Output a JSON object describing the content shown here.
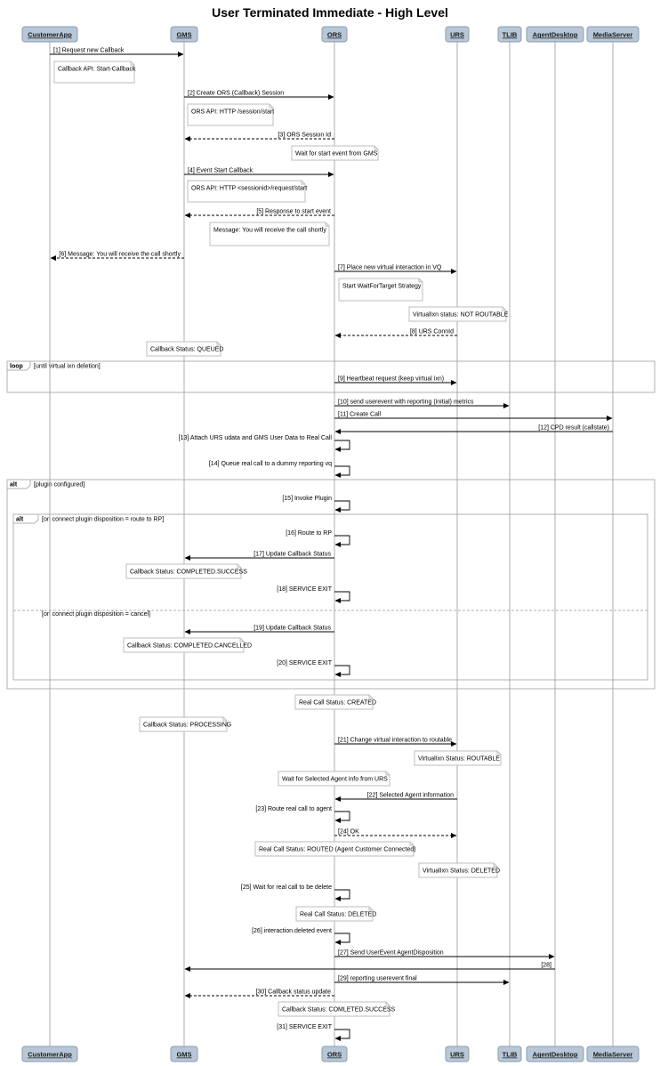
{
  "title": "User Terminated Immediate - High Level",
  "participants": [
    "CustomerApp",
    "GMS",
    "ORS",
    "URS",
    "TLIB",
    "AgentDesktop",
    "MediaServer"
  ],
  "messages": [
    {
      "from": "CustomerApp",
      "to": "GMS",
      "label": "[1] Request new Callback",
      "dashed": false
    },
    {
      "from": "GMS",
      "to": "ORS",
      "label": "[2] Create ORS (Callback) Session",
      "dashed": false
    },
    {
      "from": "ORS",
      "to": "GMS",
      "label": "[3] ORS Session Id",
      "dashed": true
    },
    {
      "from": "GMS",
      "to": "ORS",
      "label": "[4] Event Start Callback",
      "dashed": false
    },
    {
      "from": "ORS",
      "to": "GMS",
      "label": "[5] Response to start event",
      "dashed": true
    },
    {
      "from": "GMS",
      "to": "CustomerApp",
      "label": "[6] Message: You will receive the call shortly",
      "dashed": true
    },
    {
      "from": "ORS",
      "to": "URS",
      "label": "[7] Place new virtual interaction in VQ",
      "dashed": false
    },
    {
      "from": "URS",
      "to": "ORS",
      "label": "[8] URS ConnId",
      "dashed": true
    },
    {
      "from": "ORS",
      "to": "URS",
      "label": "[9] Heartbeat request (keep virtual ixn)",
      "dashed": false
    },
    {
      "from": "ORS",
      "to": "TLIB",
      "label": "[10] send userevent with reporting (initial) metrics",
      "dashed": false
    },
    {
      "from": "ORS",
      "to": "MediaServer",
      "label": "[11] Create Call",
      "dashed": false
    },
    {
      "from": "MediaServer",
      "to": "ORS",
      "label": "[12] CPD result (callstate)",
      "dashed": false
    },
    {
      "from": "ORS",
      "to": "ORS",
      "label": "[13] Attach URS udata and GMS User Data to Real Call",
      "dashed": false
    },
    {
      "from": "ORS",
      "to": "ORS",
      "label": "[14] Queue real call to a dummy reporting vq",
      "dashed": false
    },
    {
      "from": "ORS",
      "to": "ORS",
      "label": "[15] Invoke Plugin",
      "dashed": false
    },
    {
      "from": "ORS",
      "to": "ORS",
      "label": "[16] Route to RP",
      "dashed": false
    },
    {
      "from": "ORS",
      "to": "GMS",
      "label": "[17] Update Callback Status",
      "dashed": false
    },
    {
      "from": "ORS",
      "to": "ORS",
      "label": "[18] SERVICE EXIT",
      "dashed": false
    },
    {
      "from": "ORS",
      "to": "GMS",
      "label": "[19] Update Callback Status",
      "dashed": false
    },
    {
      "from": "ORS",
      "to": "ORS",
      "label": "[20] SERVICE EXIT",
      "dashed": false
    },
    {
      "from": "ORS",
      "to": "URS",
      "label": "[21] Change virtual interaction to routable",
      "dashed": false
    },
    {
      "from": "URS",
      "to": "ORS",
      "label": "[22] Selected Agent information",
      "dashed": false
    },
    {
      "from": "ORS",
      "to": "ORS",
      "label": "[23] Route real call to agent",
      "dashed": false
    },
    {
      "from": "ORS",
      "to": "URS",
      "label": "[24] OK",
      "dashed": true
    },
    {
      "from": "ORS",
      "to": "ORS",
      "label": "[25] Wait for real call to be delete",
      "dashed": false
    },
    {
      "from": "ORS",
      "to": "ORS",
      "label": "[26] interaction.deleted event",
      "dashed": false
    },
    {
      "from": "ORS",
      "to": "AgentDesktop",
      "label": "[27] Send UserEvent AgentDisposition",
      "dashed": false
    },
    {
      "from": "AgentDesktop",
      "to": "GMS",
      "label": "[28]",
      "dashed": false
    },
    {
      "from": "ORS",
      "to": "TLIB",
      "label": "[29] reporting userevent final",
      "dashed": false
    },
    {
      "from": "ORS",
      "to": "GMS",
      "label": "[30] Callback status update",
      "dashed": true
    },
    {
      "from": "ORS",
      "to": "ORS",
      "label": "[31] SERVICE EXIT",
      "dashed": false
    }
  ],
  "notes": [
    {
      "over": "CustomerApp",
      "text": "Callback API: Start-Callback"
    },
    {
      "over": "GMS",
      "text": "ORS API: HTTP /session/start"
    },
    {
      "over": "ORS",
      "text": "Wait for start event from GMS"
    },
    {
      "over": "GMS",
      "text": "ORS API: HTTP <sessionid>/request/start"
    },
    {
      "over": "ORS",
      "text": "Message: You will receive the call shortly"
    },
    {
      "over": "ORS",
      "text": "Start WaitForTarget Strategy"
    },
    {
      "over": "URS",
      "text": "VirtualIxn status: NOT ROUTABLE"
    },
    {
      "over": "GMS",
      "text": "Callback Status: QUEUED"
    },
    {
      "over": "GMS",
      "text": "Callback Status: COMPLETED.SUCCESS"
    },
    {
      "over": "GMS",
      "text": "Callback Status: COMPLETED.CANCELLED"
    },
    {
      "over": "ORS",
      "text": "Real Call Status: CREATED"
    },
    {
      "over": "GMS",
      "text": "Callback Status: PROCESSING"
    },
    {
      "over": "URS",
      "text": "VirtualIxn Status: ROUTABLE"
    },
    {
      "over": "ORS",
      "text": "Wait for Selected Agent info from URS"
    },
    {
      "over": "ORS",
      "text": "Real Call Status: ROUTED (Agent Customer Connected)"
    },
    {
      "over": "URS",
      "text": "VirtualIxn Status: DELETED"
    },
    {
      "over": "ORS",
      "text": "Real Call Status: DELETED"
    },
    {
      "over": "ORS",
      "text": "Callback Status: COMLETED.SUCCESS"
    }
  ],
  "frames": [
    {
      "tag": "loop",
      "label": "[until virtual ixn deletion]"
    },
    {
      "tag": "alt",
      "label": "[plugin configured]"
    },
    {
      "tag": "alt",
      "label": "[on connect plugin disposition = route to RP]",
      "else_label": "[on connect plugin disposition = cancel]"
    }
  ],
  "colors": {
    "participant_fill": "#b7c7d7",
    "participant_stroke": "#8a9cb0",
    "lifeline": "#9a9a9a",
    "note_stroke": "#bdbdbd",
    "frame_stroke": "#b0b0b0"
  }
}
